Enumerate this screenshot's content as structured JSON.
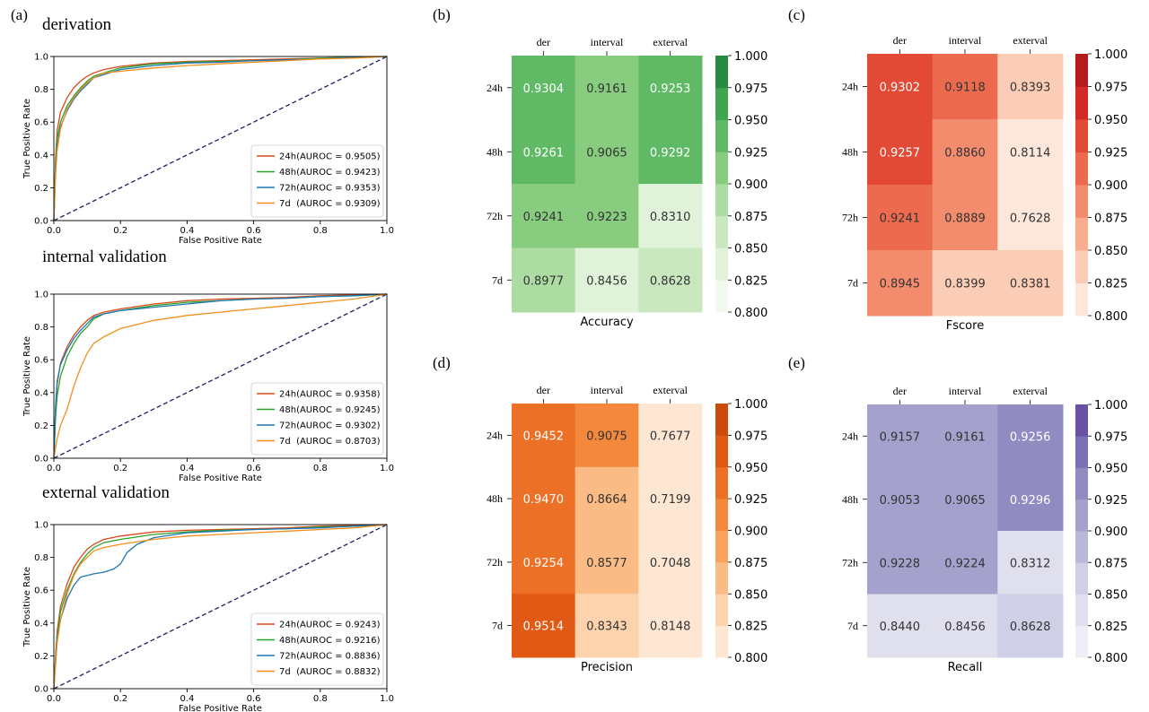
{
  "panel_letters": [
    "(a)",
    "(b)",
    "(c)",
    "(d)",
    "(e)"
  ],
  "chart_data": {
    "roc": [
      {
        "title": "derivation",
        "type": "line",
        "xlabel": "False Positive Rate",
        "ylabel": "True Positive Rate",
        "xlim": [
          0,
          1
        ],
        "ylim": [
          0,
          1
        ],
        "xticks": [
          "0.0",
          "0.2",
          "0.4",
          "0.6",
          "0.8",
          "1.0"
        ],
        "yticks": [
          "0.0",
          "0.2",
          "0.4",
          "0.6",
          "0.8",
          "1.0"
        ],
        "legend_position": "lower right",
        "series": [
          {
            "name": "24h(AUROC = 0.9505)",
            "color": "#d84a1b",
            "x": [
              0,
              0.005,
              0.01,
              0.02,
              0.04,
              0.06,
              0.08,
              0.1,
              0.12,
              0.15,
              0.2,
              0.3,
              0.4,
              0.5,
              0.6,
              0.7,
              0.8,
              0.9,
              1
            ],
            "y": [
              0,
              0.38,
              0.55,
              0.66,
              0.75,
              0.81,
              0.85,
              0.88,
              0.9,
              0.92,
              0.94,
              0.96,
              0.97,
              0.975,
              0.98,
              0.985,
              0.99,
              0.995,
              1
            ]
          },
          {
            "name": "48h(AUROC = 0.9423)",
            "color": "#2ca02c",
            "x": [
              0,
              0.005,
              0.01,
              0.02,
              0.04,
              0.06,
              0.08,
              0.1,
              0.12,
              0.15,
              0.2,
              0.3,
              0.4,
              0.5,
              0.6,
              0.7,
              0.8,
              0.9,
              1
            ],
            "y": [
              0,
              0.34,
              0.5,
              0.6,
              0.7,
              0.76,
              0.81,
              0.85,
              0.88,
              0.9,
              0.93,
              0.955,
              0.965,
              0.97,
              0.975,
              0.98,
              0.99,
              0.995,
              1
            ]
          },
          {
            "name": "72h(AUROC = 0.9353)",
            "color": "#1f77b4",
            "x": [
              0,
              0.005,
              0.01,
              0.02,
              0.04,
              0.06,
              0.08,
              0.1,
              0.12,
              0.15,
              0.2,
              0.3,
              0.4,
              0.5,
              0.6,
              0.7,
              0.8,
              0.9,
              1
            ],
            "y": [
              0,
              0.3,
              0.45,
              0.57,
              0.67,
              0.74,
              0.79,
              0.83,
              0.87,
              0.89,
              0.92,
              0.945,
              0.96,
              0.965,
              0.975,
              0.98,
              0.985,
              0.995,
              1
            ]
          },
          {
            "name": "7d  (AUROC = 0.9309)",
            "color": "#f28e1c",
            "x": [
              0,
              0.005,
              0.01,
              0.02,
              0.04,
              0.06,
              0.08,
              0.1,
              0.12,
              0.15,
              0.2,
              0.3,
              0.4,
              0.5,
              0.6,
              0.7,
              0.8,
              0.9,
              1
            ],
            "y": [
              0,
              0.28,
              0.43,
              0.56,
              0.68,
              0.75,
              0.8,
              0.84,
              0.87,
              0.9,
              0.91,
              0.93,
              0.945,
              0.955,
              0.965,
              0.975,
              0.985,
              0.99,
              1
            ]
          }
        ]
      },
      {
        "title": "internal validation",
        "type": "line",
        "xlabel": "False Positive Rate",
        "ylabel": "True Positive Rate",
        "xlim": [
          0,
          1
        ],
        "ylim": [
          0,
          1
        ],
        "xticks": [
          "0.0",
          "0.2",
          "0.4",
          "0.6",
          "0.8",
          "1.0"
        ],
        "yticks": [
          "0.0",
          "0.2",
          "0.4",
          "0.6",
          "0.8",
          "1.0"
        ],
        "legend_position": "lower right",
        "series": [
          {
            "name": "24h(AUROC = 0.9358)",
            "color": "#d84a1b",
            "x": [
              0,
              0.005,
              0.01,
              0.02,
              0.04,
              0.06,
              0.08,
              0.1,
              0.12,
              0.15,
              0.2,
              0.3,
              0.4,
              0.5,
              0.6,
              0.7,
              0.8,
              0.9,
              1
            ],
            "y": [
              0,
              0.3,
              0.45,
              0.58,
              0.68,
              0.75,
              0.8,
              0.84,
              0.87,
              0.89,
              0.91,
              0.94,
              0.96,
              0.97,
              0.975,
              0.98,
              0.99,
              0.995,
              1
            ]
          },
          {
            "name": "48h(AUROC = 0.9245)",
            "color": "#2ca02c",
            "x": [
              0,
              0.005,
              0.01,
              0.02,
              0.04,
              0.06,
              0.08,
              0.1,
              0.12,
              0.15,
              0.2,
              0.3,
              0.4,
              0.5,
              0.6,
              0.7,
              0.8,
              0.9,
              1
            ],
            "y": [
              0,
              0.25,
              0.38,
              0.5,
              0.62,
              0.7,
              0.76,
              0.8,
              0.85,
              0.88,
              0.9,
              0.93,
              0.95,
              0.96,
              0.97,
              0.975,
              0.985,
              0.99,
              1
            ]
          },
          {
            "name": "72h(AUROC = 0.9302)",
            "color": "#1f77b4",
            "x": [
              0,
              0.005,
              0.01,
              0.02,
              0.04,
              0.06,
              0.08,
              0.1,
              0.12,
              0.15,
              0.2,
              0.3,
              0.4,
              0.5,
              0.6,
              0.7,
              0.8,
              0.9,
              1
            ],
            "y": [
              0,
              0.32,
              0.47,
              0.57,
              0.66,
              0.73,
              0.78,
              0.82,
              0.86,
              0.88,
              0.9,
              0.92,
              0.94,
              0.96,
              0.97,
              0.975,
              0.985,
              0.99,
              1
            ]
          },
          {
            "name": "7d  (AUROC = 0.8703)",
            "color": "#f28e1c",
            "x": [
              0,
              0.01,
              0.02,
              0.04,
              0.06,
              0.08,
              0.1,
              0.12,
              0.15,
              0.2,
              0.3,
              0.4,
              0.5,
              0.6,
              0.7,
              0.8,
              0.9,
              1
            ],
            "y": [
              0,
              0.12,
              0.2,
              0.3,
              0.44,
              0.55,
              0.64,
              0.7,
              0.74,
              0.79,
              0.84,
              0.87,
              0.89,
              0.91,
              0.93,
              0.95,
              0.97,
              1
            ]
          }
        ]
      },
      {
        "title": "external validation",
        "type": "line",
        "xlabel": "False Positive Rate",
        "ylabel": "True Positive Rate",
        "xlim": [
          0,
          1
        ],
        "ylim": [
          0,
          1
        ],
        "xticks": [
          "0.0",
          "0.2",
          "0.4",
          "0.6",
          "0.8",
          "1.0"
        ],
        "yticks": [
          "0.0",
          "0.2",
          "0.4",
          "0.6",
          "0.8",
          "1.0"
        ],
        "legend_position": "lower right",
        "series": [
          {
            "name": "24h(AUROC = 0.9243)",
            "color": "#d84a1b",
            "x": [
              0,
              0.005,
              0.01,
              0.02,
              0.04,
              0.06,
              0.08,
              0.1,
              0.12,
              0.15,
              0.2,
              0.3,
              0.4,
              0.5,
              0.6,
              0.7,
              0.8,
              0.9,
              1
            ],
            "y": [
              0,
              0.2,
              0.35,
              0.5,
              0.64,
              0.74,
              0.8,
              0.85,
              0.88,
              0.91,
              0.93,
              0.955,
              0.965,
              0.97,
              0.975,
              0.98,
              0.99,
              0.995,
              1
            ]
          },
          {
            "name": "48h(AUROC = 0.9216)",
            "color": "#2ca02c",
            "x": [
              0,
              0.005,
              0.01,
              0.02,
              0.04,
              0.06,
              0.08,
              0.1,
              0.12,
              0.15,
              0.2,
              0.3,
              0.4,
              0.5,
              0.6,
              0.7,
              0.8,
              0.9,
              1
            ],
            "y": [
              0,
              0.18,
              0.32,
              0.47,
              0.6,
              0.7,
              0.77,
              0.82,
              0.86,
              0.89,
              0.91,
              0.94,
              0.955,
              0.965,
              0.97,
              0.975,
              0.985,
              0.99,
              1
            ]
          },
          {
            "name": "72h(AUROC = 0.8836)",
            "color": "#1f77b4",
            "x": [
              0,
              0.005,
              0.01,
              0.02,
              0.04,
              0.06,
              0.08,
              0.1,
              0.12,
              0.15,
              0.18,
              0.2,
              0.22,
              0.25,
              0.3,
              0.4,
              0.5,
              0.6,
              0.7,
              0.8,
              0.9,
              1
            ],
            "y": [
              0,
              0.15,
              0.3,
              0.42,
              0.55,
              0.63,
              0.68,
              0.69,
              0.7,
              0.71,
              0.73,
              0.76,
              0.83,
              0.88,
              0.92,
              0.95,
              0.96,
              0.97,
              0.975,
              0.98,
              0.99,
              1
            ]
          },
          {
            "name": "7d  (AUROC = 0.8832)",
            "color": "#f28e1c",
            "x": [
              0,
              0.005,
              0.01,
              0.02,
              0.04,
              0.06,
              0.08,
              0.1,
              0.12,
              0.15,
              0.2,
              0.3,
              0.4,
              0.5,
              0.6,
              0.7,
              0.8,
              0.9,
              1
            ],
            "y": [
              0,
              0.15,
              0.28,
              0.42,
              0.58,
              0.69,
              0.76,
              0.8,
              0.84,
              0.86,
              0.88,
              0.91,
              0.93,
              0.94,
              0.95,
              0.96,
              0.97,
              0.98,
              1
            ]
          }
        ]
      }
    ],
    "heatmaps": [
      {
        "type": "heatmap",
        "xlabel": "Accuracy",
        "columns": [
          "der",
          "interval",
          "exterval"
        ],
        "rows": [
          "24h",
          "48h",
          "72h",
          "7d"
        ],
        "values": [
          [
            0.9304,
            0.9161,
            0.9253
          ],
          [
            0.9261,
            0.9065,
            0.9292
          ],
          [
            0.9241,
            0.9223,
            0.831
          ],
          [
            0.8977,
            0.8456,
            0.8628
          ]
        ],
        "vmin": 0.8,
        "vmax": 1.0,
        "colorbar_ticks": [
          "1.000",
          "0.975",
          "0.950",
          "0.925",
          "0.900",
          "0.875",
          "0.850",
          "0.825",
          "0.800"
        ],
        "palette": [
          "#f2faf0",
          "#e0f2da",
          "#c9e8c0",
          "#acdca2",
          "#88cc80",
          "#60b965",
          "#3ea551",
          "#268a42"
        ]
      },
      {
        "type": "heatmap",
        "xlabel": "Fscore",
        "columns": [
          "der",
          "interval",
          "exterval"
        ],
        "rows": [
          "24h",
          "48h",
          "72h",
          "7d"
        ],
        "values": [
          [
            0.9302,
            0.9118,
            0.8393
          ],
          [
            0.9257,
            0.886,
            0.8114
          ],
          [
            0.9241,
            0.8889,
            0.7628
          ],
          [
            0.8945,
            0.8399,
            0.8381
          ]
        ],
        "vmin": 0.8,
        "vmax": 1.0,
        "colorbar_ticks": [
          "1.000",
          "0.975",
          "0.950",
          "0.925",
          "0.900",
          "0.875",
          "0.850",
          "0.825",
          "0.800"
        ],
        "palette": [
          "#fde6da",
          "#fbcdb6",
          "#f8ad8f",
          "#f38c6c",
          "#ec6a4d",
          "#e24a35",
          "#d22b26",
          "#b51b1e"
        ]
      },
      {
        "type": "heatmap",
        "xlabel": "Precision",
        "columns": [
          "der",
          "interval",
          "exterval"
        ],
        "rows": [
          "24h",
          "48h",
          "72h",
          "7d"
        ],
        "values": [
          [
            0.9452,
            0.9075,
            0.7677
          ],
          [
            0.947,
            0.8664,
            0.7199
          ],
          [
            0.9254,
            0.8577,
            0.7048
          ],
          [
            0.9514,
            0.8343,
            0.8148
          ]
        ],
        "vmin": 0.8,
        "vmax": 1.0,
        "colorbar_ticks": [
          "1.000",
          "0.975",
          "0.950",
          "0.925",
          "0.900",
          "0.875",
          "0.850",
          "0.825",
          "0.800"
        ],
        "palette": [
          "#fde7d3",
          "#fcd3ad",
          "#fbbb84",
          "#f9a25d",
          "#f4883c",
          "#ec7026",
          "#e05a15",
          "#cc4a0c"
        ]
      },
      {
        "type": "heatmap",
        "xlabel": "Recall",
        "columns": [
          "der",
          "interval",
          "exterval"
        ],
        "rows": [
          "24h",
          "48h",
          "72h",
          "7d"
        ],
        "values": [
          [
            0.9157,
            0.9161,
            0.9256
          ],
          [
            0.9053,
            0.9065,
            0.9296
          ],
          [
            0.9228,
            0.9224,
            0.8312
          ],
          [
            0.844,
            0.8456,
            0.8628
          ]
        ],
        "vmin": 0.8,
        "vmax": 1.0,
        "colorbar_ticks": [
          "1.000",
          "0.975",
          "0.950",
          "0.925",
          "0.900",
          "0.875",
          "0.850",
          "0.825",
          "0.800"
        ],
        "palette": [
          "#efedf5",
          "#e0dfee",
          "#cfcfe6",
          "#b9b8db",
          "#a4a2cd",
          "#908bc1",
          "#7b72b4",
          "#6a51a3"
        ]
      }
    ]
  }
}
